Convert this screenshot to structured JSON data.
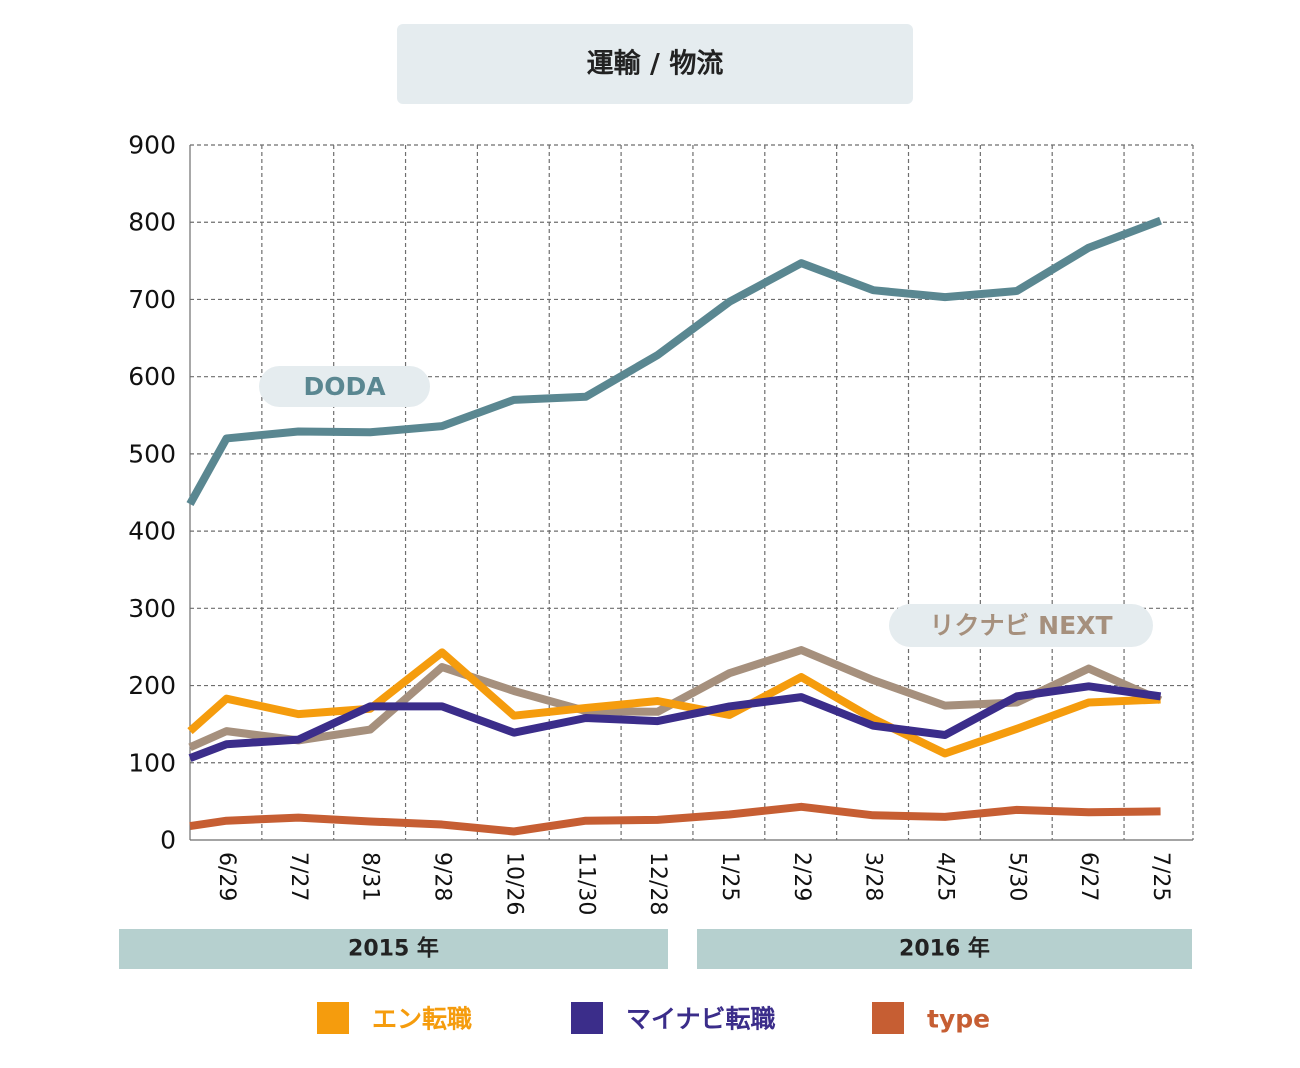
{
  "chart_data": {
    "type": "line",
    "title": "運輸 / 物流",
    "categories": [
      "6/29",
      "7/27",
      "8/31",
      "9/28",
      "10/26",
      "11/30",
      "12/28",
      "1/25",
      "2/29",
      "3/28",
      "4/25",
      "5/30",
      "6/27",
      "7/25"
    ],
    "ylim": [
      0,
      900
    ],
    "yticks": [
      "0",
      "100",
      "200",
      "300",
      "400",
      "500",
      "600",
      "700",
      "800",
      "900"
    ],
    "grid": true,
    "year_groups": [
      {
        "label": "2015 年",
        "from": 0,
        "to": 6
      },
      {
        "label": "2016 年",
        "from": 7,
        "to": 13
      }
    ],
    "series": [
      {
        "key": "doda",
        "name": "DODA",
        "color": "#5a8791",
        "start": 435,
        "values": [
          520,
          529,
          528,
          536,
          570,
          574,
          628,
          697,
          747,
          712,
          703,
          711,
          767,
          802
        ]
      },
      {
        "key": "rikunabi",
        "name": "リクナビ NEXT",
        "color": "#a6907d",
        "start": 120,
        "values": [
          141,
          129,
          143,
          224,
          193,
          167,
          166,
          216,
          246,
          207,
          174,
          178,
          222,
          181
        ]
      },
      {
        "key": "en",
        "name": "エン転職",
        "color": "#f59c0d",
        "start": 141,
        "values": [
          183,
          163,
          170,
          243,
          161,
          171,
          180,
          162,
          211,
          157,
          112,
          144,
          178,
          182
        ]
      },
      {
        "key": "mynavi",
        "name": "マイナビ転職",
        "color": "#3b2d8a",
        "start": 106,
        "values": [
          124,
          130,
          173,
          173,
          139,
          158,
          154,
          173,
          185,
          148,
          136,
          186,
          199,
          186
        ]
      },
      {
        "key": "type",
        "name": "type",
        "color": "#c65e33",
        "start": 18,
        "values": [
          25,
          29,
          24,
          20,
          11,
          25,
          26,
          33,
          43,
          32,
          30,
          39,
          36,
          37
        ]
      }
    ],
    "callouts": [
      {
        "series": "doda",
        "label": "DODA",
        "color": "#5a8791"
      },
      {
        "series": "rikunabi",
        "label": "リクナビ NEXT",
        "color": "#a6907d"
      }
    ],
    "legend": [
      {
        "label": "エン転職",
        "color": "#f59c0d"
      },
      {
        "label": "マイナビ転職",
        "color": "#3b2d8a"
      },
      {
        "label": "type",
        "color": "#c65e33"
      }
    ],
    "legend_position": "bottom"
  }
}
